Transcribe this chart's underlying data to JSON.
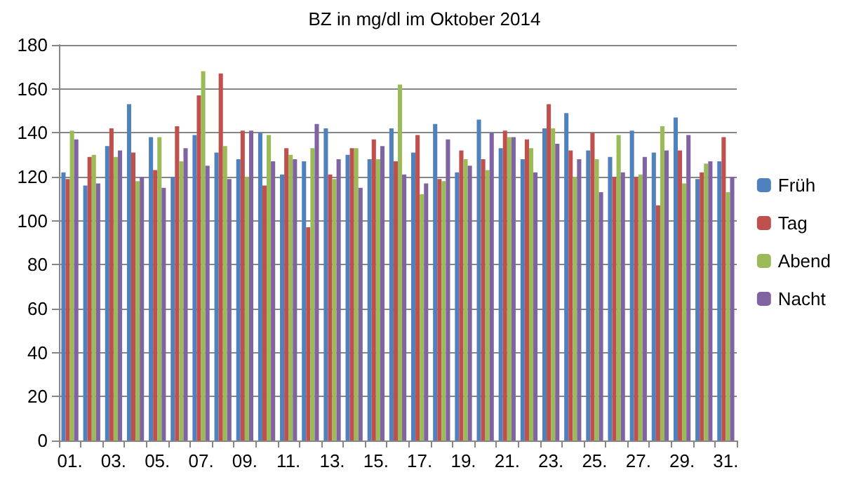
{
  "chart_data": {
    "type": "bar",
    "title": "BZ in mg/dl im Oktober 2014",
    "categories": [
      "01.",
      null,
      "03.",
      null,
      "05.",
      null,
      "07.",
      null,
      "09.",
      null,
      "11.",
      null,
      "13.",
      null,
      "15.",
      null,
      "17.",
      null,
      "19.",
      null,
      "21.",
      null,
      "23.",
      null,
      "25.",
      null,
      "27.",
      null,
      "29.",
      null,
      "31."
    ],
    "series": [
      {
        "name": "Früh",
        "color": "#4f81bd",
        "values": [
          122,
          116,
          134,
          153,
          138,
          120,
          139,
          131,
          128,
          140,
          121,
          127,
          142,
          130,
          128,
          142,
          131,
          144,
          122,
          146,
          133,
          128,
          142,
          149,
          132,
          129,
          141,
          131,
          147,
          119,
          127
        ]
      },
      {
        "name": "Tag",
        "color": "#c0504d",
        "values": [
          119,
          129,
          142,
          131,
          123,
          143,
          157,
          167,
          141,
          116,
          133,
          97,
          121,
          133,
          137,
          127,
          139,
          119,
          132,
          128,
          141,
          137,
          153,
          132,
          140,
          120,
          120,
          107,
          132,
          122,
          138
        ]
      },
      {
        "name": "Abend",
        "color": "#9bbb59",
        "values": [
          141,
          130,
          129,
          118,
          138,
          127,
          168,
          134,
          120,
          139,
          130,
          133,
          119,
          133,
          128,
          162,
          112,
          118,
          128,
          123,
          138,
          133,
          142,
          120,
          128,
          139,
          121,
          143,
          117,
          126,
          113
        ]
      },
      {
        "name": "Nacht",
        "color": "#8064a2",
        "values": [
          137,
          117,
          132,
          120,
          115,
          133,
          125,
          119,
          141,
          127,
          128,
          144,
          128,
          115,
          134,
          121,
          117,
          137,
          125,
          140,
          138,
          122,
          135,
          128,
          113,
          122,
          129,
          132,
          139,
          127,
          120
        ]
      }
    ],
    "ylim": [
      0,
      180
    ],
    "yticks": [
      0,
      20,
      40,
      60,
      80,
      100,
      120,
      140,
      160,
      180
    ],
    "grid": "y",
    "legend": "right"
  }
}
